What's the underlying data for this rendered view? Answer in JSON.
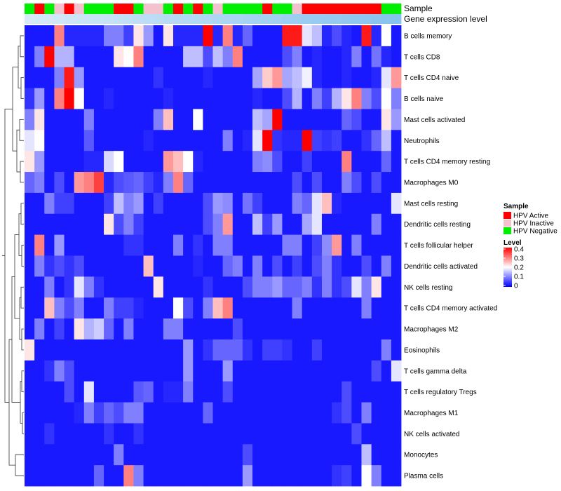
{
  "chart_data": {
    "type": "heatmap",
    "title": "",
    "annotation_labels": [
      "Sample",
      "Gene expression level"
    ],
    "rows": [
      "B cells memory",
      "T cells CD8",
      "T cells CD4 naive",
      "B cells naive",
      "Mast cells activated",
      "Neutrophils",
      "T cells CD4 memory resting",
      "Macrophages M0",
      "Mast cells resting",
      "Dendritic cells resting",
      "T cells follicular helper",
      "Dendritic cells activated",
      "NK cells resting",
      "T cells CD4 memory activated",
      "Macrophages M2",
      "Eosinophils",
      "T cells gamma delta",
      "T cells regulatory  Tregs",
      "Macrophages M1",
      "NK cells activated",
      "Monocytes",
      "Plasma cells"
    ],
    "sample_groups": [
      "HPV Negative",
      "HPV Active",
      "HPV Negative",
      "HPV Inactive",
      "HPV Active",
      "HPV Inactive",
      "HPV Negative",
      "HPV Negative",
      "HPV Negative",
      "HPV Active",
      "HPV Active",
      "HPV Negative",
      "HPV Inactive",
      "HPV Inactive",
      "HPV Negative",
      "HPV Active",
      "HPV Negative",
      "HPV Active",
      "HPV Negative",
      "HPV Inactive",
      "HPV Negative",
      "HPV Negative",
      "HPV Negative",
      "HPV Negative",
      "HPV Active",
      "HPV Negative",
      "HPV Negative",
      "HPV Inactive",
      "HPV Active",
      "HPV Active",
      "HPV Active",
      "HPV Active",
      "HPV Active",
      "HPV Active",
      "HPV Active",
      "HPV Active",
      "HPV Negative",
      "HPV Negative"
    ],
    "values": [
      [
        0.02,
        0.02,
        0.02,
        0.3,
        0.03,
        0.03,
        0.03,
        0.03,
        0.1,
        0.1,
        0.05,
        0.22,
        0.12,
        0.02,
        0.22,
        0.03,
        0.03,
        0.03,
        0.4,
        0.03,
        0.3,
        0.03,
        0.08,
        0.02,
        0.02,
        0.02,
        0.38,
        0.38,
        0.18,
        0.15,
        0.03,
        0.06,
        0.03,
        0.02,
        0.38,
        0.03,
        0.2,
        0.02
      ],
      [
        0.02,
        0.1,
        0.4,
        0.14,
        0.14,
        0.02,
        0.02,
        0.02,
        0.02,
        0.22,
        0.2,
        0.3,
        0.02,
        0.02,
        0.02,
        0.02,
        0.15,
        0.15,
        0.06,
        0.15,
        0.1,
        0.3,
        0.02,
        0.02,
        0.02,
        0.02,
        0.06,
        0.1,
        0.02,
        0.03,
        0.02,
        0.02,
        0.03,
        0.1,
        0.02,
        0.09,
        0.03,
        0.02
      ],
      [
        0.02,
        0.02,
        0.02,
        0.1,
        0.38,
        0.12,
        0.02,
        0.02,
        0.02,
        0.02,
        0.02,
        0.02,
        0.02,
        0.04,
        0.02,
        0.02,
        0.02,
        0.02,
        0.03,
        0.02,
        0.02,
        0.02,
        0.02,
        0.13,
        0.24,
        0.28,
        0.13,
        0.15,
        0.19,
        0.03,
        0.02,
        0.02,
        0.03,
        0.02,
        0.02,
        0.03,
        0.18,
        0.28
      ],
      [
        0.04,
        0.12,
        0.02,
        0.3,
        0.4,
        0.2,
        0.02,
        0.02,
        0.03,
        0.02,
        0.02,
        0.02,
        0.02,
        0.02,
        0.03,
        0.02,
        0.02,
        0.02,
        0.02,
        0.02,
        0.02,
        0.02,
        0.02,
        0.03,
        0.02,
        0.02,
        0.06,
        0.14,
        0.02,
        0.1,
        0.05,
        0.14,
        0.22,
        0.3,
        0.1,
        0.06,
        0.2,
        0.1
      ],
      [
        0.1,
        0.22,
        0.02,
        0.02,
        0.02,
        0.02,
        0.1,
        0.02,
        0.02,
        0.02,
        0.02,
        0.02,
        0.02,
        0.1,
        0.25,
        0.02,
        0.02,
        0.2,
        0.02,
        0.02,
        0.02,
        0.02,
        0.02,
        0.15,
        0.13,
        0.4,
        0.02,
        0.02,
        0.02,
        0.02,
        0.02,
        0.02,
        0.08,
        0.06,
        0.02,
        0.02,
        0.22,
        0.12
      ],
      [
        0.18,
        0.2,
        0.02,
        0.02,
        0.02,
        0.02,
        0.07,
        0.02,
        0.02,
        0.02,
        0.02,
        0.02,
        0.03,
        0.02,
        0.02,
        0.02,
        0.02,
        0.02,
        0.02,
        0.02,
        0.1,
        0.02,
        0.03,
        0.18,
        0.4,
        0.04,
        0.03,
        0.03,
        0.4,
        0.05,
        0.04,
        0.05,
        0.02,
        0.02,
        0.04,
        0.08,
        0.15,
        0.02
      ],
      [
        0.22,
        0.12,
        0.02,
        0.02,
        0.02,
        0.02,
        0.03,
        0.03,
        0.17,
        0.2,
        0.02,
        0.02,
        0.02,
        0.02,
        0.28,
        0.25,
        0.2,
        0.03,
        0.02,
        0.02,
        0.02,
        0.02,
        0.02,
        0.1,
        0.11,
        0.06,
        0.02,
        0.02,
        0.05,
        0.02,
        0.02,
        0.02,
        0.3,
        0.02,
        0.02,
        0.02,
        0.08,
        0.02
      ],
      [
        0.08,
        0.1,
        0.02,
        0.06,
        0.02,
        0.28,
        0.3,
        0.35,
        0.03,
        0.06,
        0.07,
        0.08,
        0.05,
        0.03,
        0.1,
        0.3,
        0.08,
        0.02,
        0.02,
        0.02,
        0.02,
        0.02,
        0.02,
        0.02,
        0.02,
        0.02,
        0.02,
        0.06,
        0.02,
        0.06,
        0.02,
        0.02,
        0.1,
        0.06,
        0.02,
        0.06,
        0.02,
        0.02
      ],
      [
        0.02,
        0.02,
        0.1,
        0.05,
        0.05,
        0.02,
        0.02,
        0.02,
        0.05,
        0.15,
        0.1,
        0.12,
        0.02,
        0.05,
        0.02,
        0.02,
        0.02,
        0.02,
        0.06,
        0.12,
        0.11,
        0.02,
        0.09,
        0.05,
        0.02,
        0.02,
        0.02,
        0.1,
        0.08,
        0.18,
        0.25,
        0.03,
        0.02,
        0.02,
        0.02,
        0.02,
        0.02,
        0.18
      ],
      [
        0.02,
        0.02,
        0.02,
        0.02,
        0.02,
        0.02,
        0.02,
        0.02,
        0.22,
        0.06,
        0.1,
        0.05,
        0.02,
        0.02,
        0.02,
        0.02,
        0.02,
        0.02,
        0.06,
        0.1,
        0.28,
        0.02,
        0.02,
        0.15,
        0.05,
        0.12,
        0.02,
        0.02,
        0.13,
        0.18,
        0.02,
        0.02,
        0.02,
        0.02,
        0.02,
        0.1,
        0.02,
        0.02
      ],
      [
        0.02,
        0.3,
        0.02,
        0.12,
        0.02,
        0.02,
        0.02,
        0.02,
        0.02,
        0.02,
        0.04,
        0.04,
        0.02,
        0.02,
        0.02,
        0.1,
        0.02,
        0.04,
        0.02,
        0.1,
        0.1,
        0.02,
        0.02,
        0.02,
        0.02,
        0.02,
        0.1,
        0.1,
        0.02,
        0.05,
        0.11,
        0.28,
        0.02,
        0.1,
        0.02,
        0.02,
        0.02,
        0.02
      ],
      [
        0.02,
        0.1,
        0.04,
        0.06,
        0.04,
        0.06,
        0.02,
        0.02,
        0.02,
        0.02,
        0.02,
        0.02,
        0.25,
        0.02,
        0.02,
        0.02,
        0.02,
        0.03,
        0.02,
        0.02,
        0.08,
        0.1,
        0.02,
        0.1,
        0.02,
        0.06,
        0.02,
        0.05,
        0.02,
        0.06,
        0.1,
        0.04,
        0.02,
        0.02,
        0.06,
        0.02,
        0.1,
        0.02
      ],
      [
        0.02,
        0.02,
        0.1,
        0.02,
        0.04,
        0.18,
        0.1,
        0.04,
        0.02,
        0.02,
        0.02,
        0.02,
        0.02,
        0.22,
        0.02,
        0.02,
        0.02,
        0.02,
        0.04,
        0.02,
        0.02,
        0.02,
        0.06,
        0.1,
        0.1,
        0.12,
        0.08,
        0.08,
        0.1,
        0.04,
        0.1,
        0.04,
        0.06,
        0.18,
        0.1,
        0.22,
        0.02,
        0.02
      ],
      [
        0.02,
        0.02,
        0.25,
        0.1,
        0.06,
        0.1,
        0.02,
        0.02,
        0.1,
        0.05,
        0.05,
        0.03,
        0.02,
        0.02,
        0.02,
        0.2,
        0.06,
        0.02,
        0.1,
        0.25,
        0.3,
        0.02,
        0.02,
        0.02,
        0.02,
        0.02,
        0.02,
        0.1,
        0.02,
        0.02,
        0.02,
        0.02,
        0.02,
        0.02,
        0.1,
        0.02,
        0.02,
        0.02
      ],
      [
        0.02,
        0.1,
        0.02,
        0.05,
        0.02,
        0.22,
        0.14,
        0.16,
        0.08,
        0.02,
        0.1,
        0.02,
        0.02,
        0.02,
        0.1,
        0.1,
        0.02,
        0.02,
        0.02,
        0.02,
        0.02,
        0.06,
        0.02,
        0.02,
        0.02,
        0.02,
        0.02,
        0.02,
        0.02,
        0.02,
        0.02,
        0.02,
        0.02,
        0.02,
        0.02,
        0.02,
        0.02,
        0.02
      ],
      [
        0.22,
        0.02,
        0.02,
        0.02,
        0.02,
        0.02,
        0.02,
        0.02,
        0.02,
        0.02,
        0.02,
        0.02,
        0.02,
        0.02,
        0.02,
        0.02,
        0.12,
        0.02,
        0.04,
        0.08,
        0.08,
        0.08,
        0.04,
        0.02,
        0.05,
        0.05,
        0.04,
        0.02,
        0.02,
        0.05,
        0.02,
        0.02,
        0.02,
        0.02,
        0.02,
        0.02,
        0.1,
        0.02
      ],
      [
        0.02,
        0.02,
        0.04,
        0.1,
        0.06,
        0.02,
        0.02,
        0.02,
        0.02,
        0.02,
        0.02,
        0.02,
        0.02,
        0.02,
        0.02,
        0.02,
        0.12,
        0.02,
        0.02,
        0.02,
        0.12,
        0.02,
        0.02,
        0.02,
        0.02,
        0.02,
        0.02,
        0.02,
        0.02,
        0.02,
        0.02,
        0.02,
        0.02,
        0.02,
        0.02,
        0.06,
        0.02,
        0.18
      ],
      [
        0.02,
        0.02,
        0.02,
        0.02,
        0.06,
        0.02,
        0.18,
        0.02,
        0.02,
        0.02,
        0.02,
        0.07,
        0.08,
        0.02,
        0.03,
        0.03,
        0.1,
        0.02,
        0.02,
        0.02,
        0.06,
        0.02,
        0.02,
        0.02,
        0.02,
        0.02,
        0.02,
        0.02,
        0.02,
        0.02,
        0.02,
        0.02,
        0.06,
        0.02,
        0.02,
        0.02,
        0.02,
        0.02
      ],
      [
        0.02,
        0.02,
        0.02,
        0.02,
        0.02,
        0.03,
        0.1,
        0.05,
        0.08,
        0.06,
        0.1,
        0.1,
        0.02,
        0.02,
        0.02,
        0.02,
        0.02,
        0.02,
        0.08,
        0.02,
        0.02,
        0.02,
        0.02,
        0.02,
        0.02,
        0.02,
        0.02,
        0.02,
        0.02,
        0.02,
        0.02,
        0.04,
        0.06,
        0.02,
        0.1,
        0.02,
        0.02,
        0.02
      ],
      [
        0.02,
        0.02,
        0.04,
        0.02,
        0.02,
        0.02,
        0.02,
        0.02,
        0.04,
        0.02,
        0.02,
        0.04,
        0.02,
        0.02,
        0.02,
        0.02,
        0.02,
        0.02,
        0.02,
        0.02,
        0.02,
        0.02,
        0.02,
        0.02,
        0.02,
        0.02,
        0.02,
        0.02,
        0.02,
        0.02,
        0.02,
        0.02,
        0.02,
        0.06,
        0.02,
        0.02,
        0.02,
        0.02
      ],
      [
        0.02,
        0.02,
        0.02,
        0.02,
        0.02,
        0.02,
        0.02,
        0.02,
        0.02,
        0.1,
        0.02,
        0.02,
        0.02,
        0.02,
        0.02,
        0.02,
        0.02,
        0.02,
        0.02,
        0.02,
        0.02,
        0.02,
        0.06,
        0.02,
        0.02,
        0.02,
        0.02,
        0.02,
        0.02,
        0.02,
        0.02,
        0.02,
        0.02,
        0.02,
        0.15,
        0.02,
        0.02,
        0.02
      ],
      [
        0.02,
        0.02,
        0.02,
        0.02,
        0.02,
        0.02,
        0.02,
        0.08,
        0.02,
        0.02,
        0.3,
        0.1,
        0.02,
        0.02,
        0.02,
        0.02,
        0.02,
        0.02,
        0.02,
        0.02,
        0.02,
        0.02,
        0.12,
        0.02,
        0.02,
        0.02,
        0.02,
        0.02,
        0.02,
        0.02,
        0.02,
        0.04,
        0.05,
        0.02,
        0.2,
        0.1,
        0.02,
        0.02
      ]
    ],
    "legend_sample": {
      "title": "Sample",
      "entries": [
        {
          "label": "HPV Active",
          "color": "#ff0000"
        },
        {
          "label": "HPV Inactive",
          "color": "#f4c2cc"
        },
        {
          "label": "HPV Negative",
          "color": "#00ee00"
        }
      ]
    },
    "legend_level": {
      "title": "Level",
      "ticks": [
        "0.4",
        "0.3",
        "0.2",
        "0.1",
        "0"
      ],
      "range": [
        0,
        0.4
      ]
    },
    "colors": {
      "low": "#0000ff",
      "mid": "#ffffff",
      "high": "#ff0000",
      "expression_bar": "#87c3ef",
      "expression_bar_light": "#d6eaf8"
    }
  }
}
